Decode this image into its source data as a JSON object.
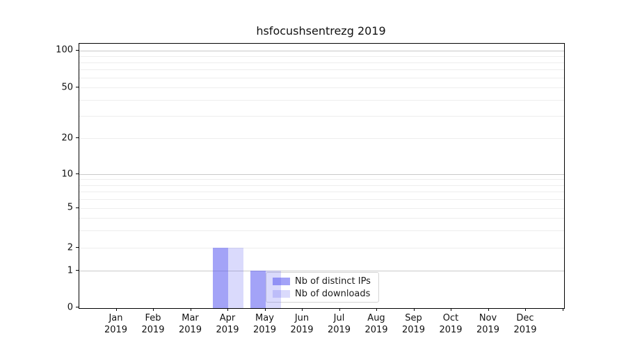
{
  "title": "hsfocushsentrezg 2019",
  "chart_data": {
    "type": "bar",
    "title": "hsfocushsentrezg 2019",
    "months": [
      {
        "line1": "Jan",
        "line2": "2019"
      },
      {
        "line1": "Feb",
        "line2": "2019"
      },
      {
        "line1": "Mar",
        "line2": "2019"
      },
      {
        "line1": "Apr",
        "line2": "2019"
      },
      {
        "line1": "May",
        "line2": "2019"
      },
      {
        "line1": "Jun",
        "line2": "2019"
      },
      {
        "line1": "Jul",
        "line2": "2019"
      },
      {
        "line1": "Aug",
        "line2": "2019"
      },
      {
        "line1": "Sep",
        "line2": "2019"
      },
      {
        "line1": "Oct",
        "line2": "2019"
      },
      {
        "line1": "Nov",
        "line2": "2019"
      },
      {
        "line1": "Dec",
        "line2": "2019"
      }
    ],
    "categories": [
      "Jan 2019",
      "Feb 2019",
      "Mar 2019",
      "Apr 2019",
      "May 2019",
      "Jun 2019",
      "Jul 2019",
      "Aug 2019",
      "Sep 2019",
      "Oct 2019",
      "Nov 2019",
      "Dec 2019"
    ],
    "series": [
      {
        "name": "Nb of distinct IPs",
        "values": [
          0,
          0,
          0,
          2,
          1,
          0,
          0,
          0,
          0,
          0,
          0,
          0
        ],
        "color": "rgba(88,88,240,0.55)"
      },
      {
        "name": "Nb of downloads",
        "values": [
          0,
          0,
          0,
          2,
          1,
          0,
          0,
          0,
          0,
          0,
          0,
          0
        ],
        "color": "rgba(88,88,240,0.22)"
      }
    ],
    "y_scale": "symlog",
    "y_ticks": [
      0,
      1,
      2,
      5,
      10,
      20,
      50,
      100
    ],
    "y_gridlines_major": [
      1,
      10,
      100
    ],
    "y_gridlines_minor": [
      2,
      3,
      4,
      5,
      6,
      7,
      8,
      9,
      20,
      30,
      40,
      50,
      60,
      70,
      80,
      90
    ],
    "ylim": [
      0,
      120
    ],
    "xlabel": "",
    "ylabel": "",
    "grid": "horizontal",
    "legend_position": "lower-center",
    "colors": {
      "bar_distinct_ips": "#a3a3f4",
      "bar_downloads": "#dadaf8",
      "grid_major": "#c9c9c9",
      "grid_minor": "#ededed",
      "axis": "#000000",
      "background": "#ffffff"
    }
  },
  "legend": {
    "items": [
      {
        "label": "Nb of distinct IPs"
      },
      {
        "label": "Nb of downloads"
      }
    ]
  }
}
